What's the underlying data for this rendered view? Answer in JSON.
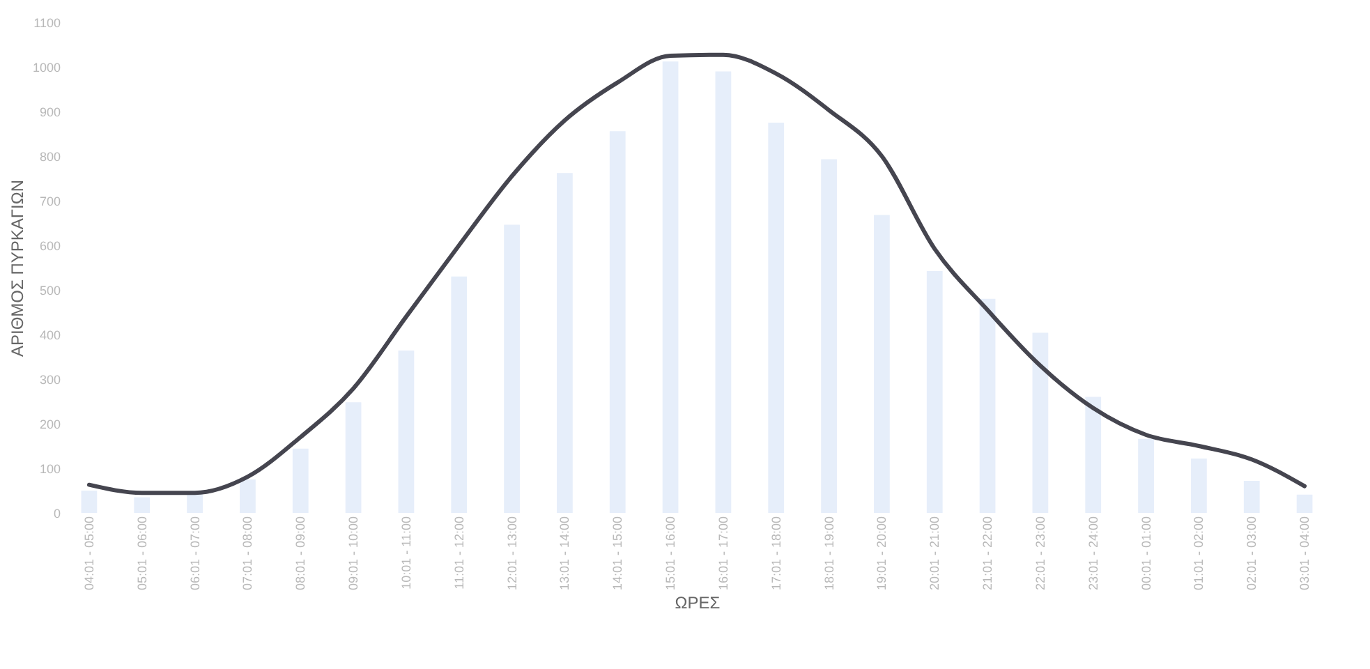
{
  "chart_data": {
    "type": "bar",
    "xlabel": "ΩΡΕΣ",
    "ylabel": "ΑΡΙΘΜΟΣ ΠΥΡΚΑΓΙΩΝ",
    "categories": [
      "04:01 - 05:00",
      "05:01 - 06:00",
      "06:01 - 07:00",
      "07:01 - 08:00",
      "08:01 - 09:00",
      "09:01 - 10:00",
      "10:01 - 11:00",
      "11:01 - 12:00",
      "12:01 - 13:00",
      "13:01 - 14:00",
      "14:01 - 15:00",
      "15:01 - 16:00",
      "16:01 - 17:00",
      "17:01 - 18:00",
      "18:01 - 19:00",
      "19:01 - 20:00",
      "20:01 - 21:00",
      "21:01 - 22:00",
      "22:01 - 23:00",
      "23:01 - 24:00",
      "00:01 - 01:00",
      "01:01 - 02:00",
      "02:01 - 03:00",
      "03:01 - 04:00"
    ],
    "series": [
      {
        "color": "#e6eefa",
        "values": [
          50,
          35,
          45,
          75,
          144,
          248,
          364,
          530,
          646,
          762,
          856,
          1012,
          990,
          875,
          793,
          668,
          542,
          480,
          404,
          260,
          166,
          122,
          72,
          41
        ]
      },
      {
        "type": "line",
        "color": "#45454f",
        "values": [
          63,
          45,
          45,
          81,
          170,
          279,
          440,
          600,
          755,
          880,
          965,
          1025,
          1027,
          985,
          903,
          800,
          592,
          455,
          330,
          235,
          175,
          150,
          120,
          60
        ]
      }
    ],
    "ylim": [
      0,
      1100
    ],
    "yticks": [
      0,
      100,
      200,
      300,
      400,
      500,
      600,
      700,
      800,
      900,
      1000,
      1100
    ],
    "grid": false
  }
}
